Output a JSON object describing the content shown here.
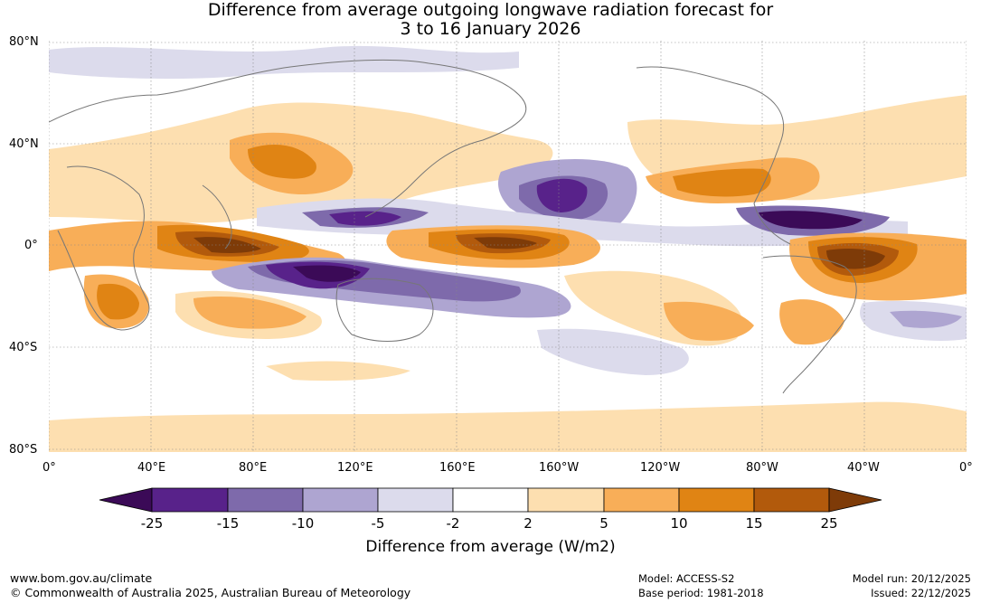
{
  "title": {
    "line1": "Difference from average outgoing longwave radiation forecast for",
    "line2": "3 to 16 January 2026"
  },
  "map": {
    "lat_labels": [
      "80°N",
      "40°N",
      "0°",
      "40°S",
      "80°S"
    ],
    "lon_labels": [
      "0°",
      "40°E",
      "80°E",
      "120°E",
      "160°E",
      "160°W",
      "120°W",
      "80°W",
      "40°W",
      "0°"
    ]
  },
  "colorbar": {
    "title": "Difference from average (W/m2)",
    "ticks": [
      "-25",
      "-15",
      "-10",
      "-5",
      "-2",
      "2",
      "5",
      "10",
      "15",
      "25"
    ],
    "colors": [
      "#3b0a57",
      "#58228a",
      "#7e6aab",
      "#aea5d1",
      "#dcdbec",
      "#ffffff",
      "#fddfb0",
      "#f8ae58",
      "#e08414",
      "#b25a0c",
      "#7e3b08"
    ]
  },
  "footer": {
    "website": "www.bom.gov.au/climate",
    "copyright": "© Commonwealth of Australia 2025, Australian Bureau of Meteorology",
    "model": "Model: ACCESS-S2",
    "base_period": "Base period: 1981-2018",
    "model_run": "Model run: 20/12/2025",
    "issued": "Issued: 22/12/2025"
  }
}
